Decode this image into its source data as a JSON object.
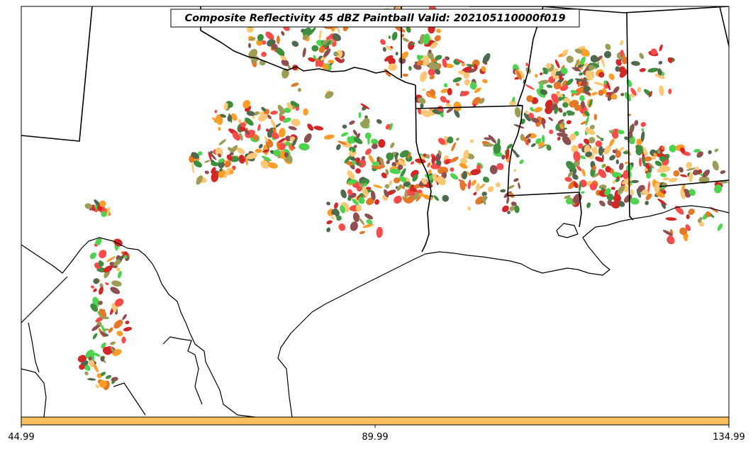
{
  "title": "Composite Reflectivity 45 dBZ Paintball Valid: 202105110000f019",
  "colorbar": {
    "color": "#fdbf5e",
    "ticks": [
      "44.99",
      "89.99",
      "134.99"
    ]
  },
  "colors": {
    "coast": "#000000",
    "paintball": [
      "#ff2a2a",
      "#2ecc2e",
      "#ff8c00",
      "#7a3030",
      "#8c8c3a",
      "#2f4f2f",
      "#fdbf5e",
      "#cc0000",
      "#1a7a1a",
      "#e06000"
    ]
  }
}
